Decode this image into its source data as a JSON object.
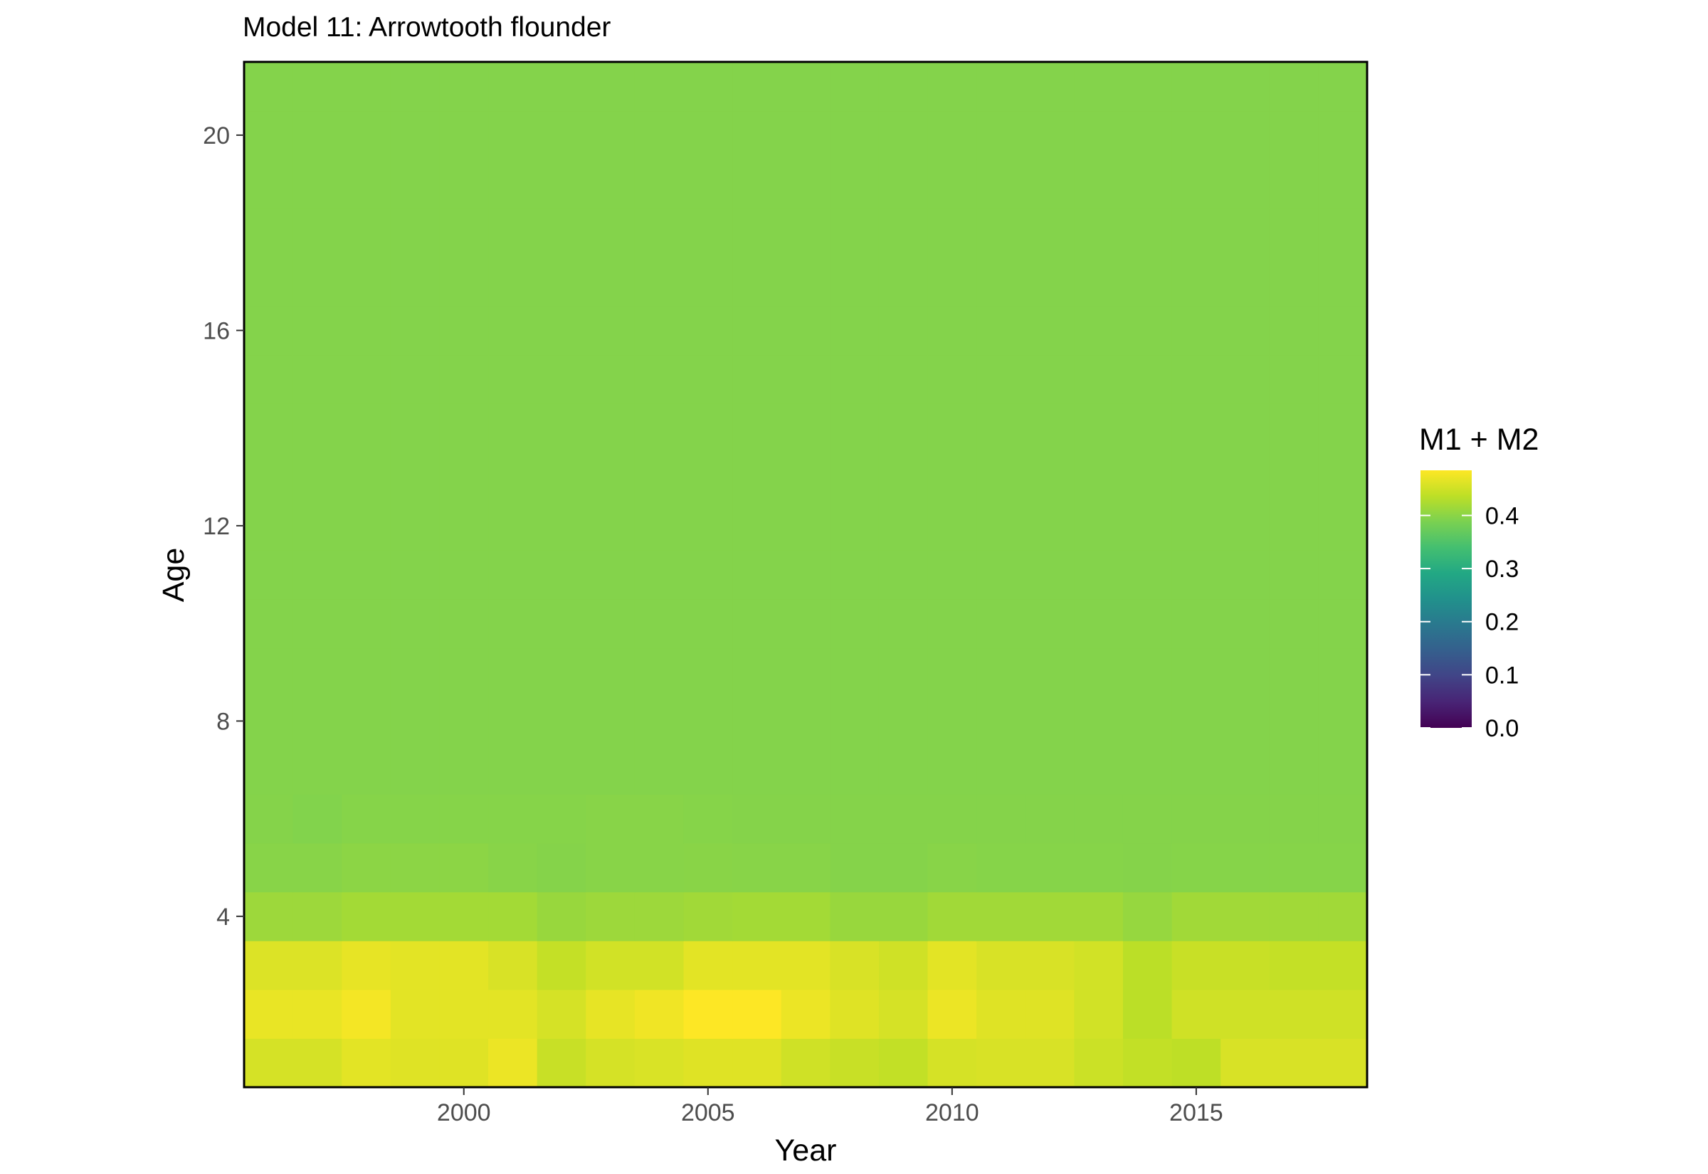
{
  "chart_data": {
    "type": "heatmap",
    "title": "Model 11: Arrowtooth flounder",
    "xlabel": "Year",
    "ylabel": "Age",
    "x_ticks": [
      2000,
      2005,
      2010,
      2015
    ],
    "y_ticks": [
      4,
      8,
      12,
      16,
      20
    ],
    "xlim": [
      1995.5,
      2018.5
    ],
    "ylim": [
      0.5,
      21.5
    ],
    "x": [
      1996,
      1997,
      1998,
      1999,
      2000,
      2001,
      2002,
      2003,
      2004,
      2005,
      2006,
      2007,
      2008,
      2009,
      2010,
      2011,
      2012,
      2013,
      2014,
      2015,
      2016,
      2017,
      2018
    ],
    "y": [
      1,
      2,
      3,
      4,
      5,
      6,
      7,
      8,
      9,
      10,
      11,
      12,
      13,
      14,
      15,
      16,
      17,
      18,
      19,
      20,
      21
    ],
    "values": [
      [
        0.455,
        0.455,
        0.465,
        0.462,
        0.462,
        0.472,
        0.445,
        0.455,
        0.458,
        0.462,
        0.462,
        0.45,
        0.445,
        0.44,
        0.455,
        0.457,
        0.457,
        0.447,
        0.44,
        0.437,
        0.457,
        0.457,
        0.457
      ],
      [
        0.47,
        0.47,
        0.478,
        0.465,
        0.465,
        0.465,
        0.455,
        0.468,
        0.475,
        0.485,
        0.485,
        0.472,
        0.462,
        0.455,
        0.472,
        0.462,
        0.462,
        0.452,
        0.435,
        0.45,
        0.45,
        0.45,
        0.45
      ],
      [
        0.46,
        0.46,
        0.468,
        0.465,
        0.465,
        0.457,
        0.442,
        0.452,
        0.452,
        0.465,
        0.465,
        0.465,
        0.457,
        0.45,
        0.465,
        0.457,
        0.457,
        0.452,
        0.435,
        0.445,
        0.445,
        0.442,
        0.442
      ],
      [
        0.413,
        0.413,
        0.418,
        0.418,
        0.418,
        0.418,
        0.41,
        0.413,
        0.413,
        0.416,
        0.418,
        0.418,
        0.41,
        0.41,
        0.416,
        0.416,
        0.416,
        0.416,
        0.408,
        0.416,
        0.416,
        0.416,
        0.416
      ],
      [
        0.398,
        0.398,
        0.401,
        0.401,
        0.401,
        0.398,
        0.396,
        0.398,
        0.398,
        0.399,
        0.398,
        0.398,
        0.396,
        0.396,
        0.398,
        0.397,
        0.397,
        0.397,
        0.396,
        0.397,
        0.397,
        0.397,
        0.397
      ],
      [
        0.396,
        0.394,
        0.397,
        0.397,
        0.397,
        0.397,
        0.397,
        0.398,
        0.398,
        0.397,
        0.396,
        0.396,
        0.396,
        0.396,
        0.396,
        0.396,
        0.396,
        0.396,
        0.396,
        0.396,
        0.396,
        0.396,
        0.396
      ],
      [
        0.395,
        0.395,
        0.395,
        0.395,
        0.395,
        0.395,
        0.395,
        0.395,
        0.395,
        0.395,
        0.395,
        0.395,
        0.395,
        0.395,
        0.395,
        0.395,
        0.395,
        0.395,
        0.395,
        0.395,
        0.395,
        0.395,
        0.395
      ],
      [
        0.395,
        0.395,
        0.395,
        0.395,
        0.395,
        0.395,
        0.395,
        0.395,
        0.395,
        0.395,
        0.395,
        0.395,
        0.395,
        0.395,
        0.395,
        0.395,
        0.395,
        0.395,
        0.395,
        0.395,
        0.395,
        0.395,
        0.395
      ],
      [
        0.395,
        0.395,
        0.395,
        0.395,
        0.395,
        0.395,
        0.395,
        0.395,
        0.395,
        0.395,
        0.395,
        0.395,
        0.395,
        0.395,
        0.395,
        0.395,
        0.395,
        0.395,
        0.395,
        0.395,
        0.395,
        0.395,
        0.395
      ],
      [
        0.395,
        0.395,
        0.395,
        0.395,
        0.395,
        0.395,
        0.395,
        0.395,
        0.395,
        0.395,
        0.395,
        0.395,
        0.395,
        0.395,
        0.395,
        0.395,
        0.395,
        0.395,
        0.395,
        0.395,
        0.395,
        0.395,
        0.395
      ],
      [
        0.395,
        0.395,
        0.395,
        0.395,
        0.395,
        0.395,
        0.395,
        0.395,
        0.395,
        0.395,
        0.395,
        0.395,
        0.395,
        0.395,
        0.395,
        0.395,
        0.395,
        0.395,
        0.395,
        0.395,
        0.395,
        0.395,
        0.395
      ],
      [
        0.395,
        0.395,
        0.395,
        0.395,
        0.395,
        0.395,
        0.395,
        0.395,
        0.395,
        0.395,
        0.395,
        0.395,
        0.395,
        0.395,
        0.395,
        0.395,
        0.395,
        0.395,
        0.395,
        0.395,
        0.395,
        0.395,
        0.395
      ],
      [
        0.395,
        0.395,
        0.395,
        0.395,
        0.395,
        0.395,
        0.395,
        0.395,
        0.395,
        0.395,
        0.395,
        0.395,
        0.395,
        0.395,
        0.395,
        0.395,
        0.395,
        0.395,
        0.395,
        0.395,
        0.395,
        0.395,
        0.395
      ],
      [
        0.395,
        0.395,
        0.395,
        0.395,
        0.395,
        0.395,
        0.395,
        0.395,
        0.395,
        0.395,
        0.395,
        0.395,
        0.395,
        0.395,
        0.395,
        0.395,
        0.395,
        0.395,
        0.395,
        0.395,
        0.395,
        0.395,
        0.395
      ],
      [
        0.395,
        0.395,
        0.395,
        0.395,
        0.395,
        0.395,
        0.395,
        0.395,
        0.395,
        0.395,
        0.395,
        0.395,
        0.395,
        0.395,
        0.395,
        0.395,
        0.395,
        0.395,
        0.395,
        0.395,
        0.395,
        0.395,
        0.395
      ],
      [
        0.395,
        0.395,
        0.395,
        0.395,
        0.395,
        0.395,
        0.395,
        0.395,
        0.395,
        0.395,
        0.395,
        0.395,
        0.395,
        0.395,
        0.395,
        0.395,
        0.395,
        0.395,
        0.395,
        0.395,
        0.395,
        0.395,
        0.395
      ],
      [
        0.395,
        0.395,
        0.395,
        0.395,
        0.395,
        0.395,
        0.395,
        0.395,
        0.395,
        0.395,
        0.395,
        0.395,
        0.395,
        0.395,
        0.395,
        0.395,
        0.395,
        0.395,
        0.395,
        0.395,
        0.395,
        0.395,
        0.395
      ],
      [
        0.395,
        0.395,
        0.395,
        0.395,
        0.395,
        0.395,
        0.395,
        0.395,
        0.395,
        0.395,
        0.395,
        0.395,
        0.395,
        0.395,
        0.395,
        0.395,
        0.395,
        0.395,
        0.395,
        0.395,
        0.395,
        0.395,
        0.395
      ],
      [
        0.395,
        0.395,
        0.395,
        0.395,
        0.395,
        0.395,
        0.395,
        0.395,
        0.395,
        0.395,
        0.395,
        0.395,
        0.395,
        0.395,
        0.395,
        0.395,
        0.395,
        0.395,
        0.395,
        0.395,
        0.395,
        0.395,
        0.395
      ],
      [
        0.395,
        0.395,
        0.395,
        0.395,
        0.395,
        0.395,
        0.395,
        0.395,
        0.395,
        0.395,
        0.395,
        0.395,
        0.395,
        0.395,
        0.395,
        0.395,
        0.395,
        0.395,
        0.395,
        0.395,
        0.395,
        0.395,
        0.395
      ],
      [
        0.395,
        0.395,
        0.395,
        0.395,
        0.395,
        0.395,
        0.395,
        0.395,
        0.395,
        0.395,
        0.395,
        0.395,
        0.395,
        0.395,
        0.395,
        0.395,
        0.395,
        0.395,
        0.395,
        0.395,
        0.395,
        0.395,
        0.395
      ]
    ],
    "legend": {
      "title": "M1 + M2",
      "ticks": [
        0.0,
        0.1,
        0.2,
        0.3,
        0.4
      ],
      "tick_labels": [
        "0.0",
        "0.1",
        "0.2",
        "0.3",
        "0.4"
      ],
      "range": [
        0.0,
        0.485
      ],
      "palette": "viridis",
      "position": "right"
    },
    "grid": false
  }
}
